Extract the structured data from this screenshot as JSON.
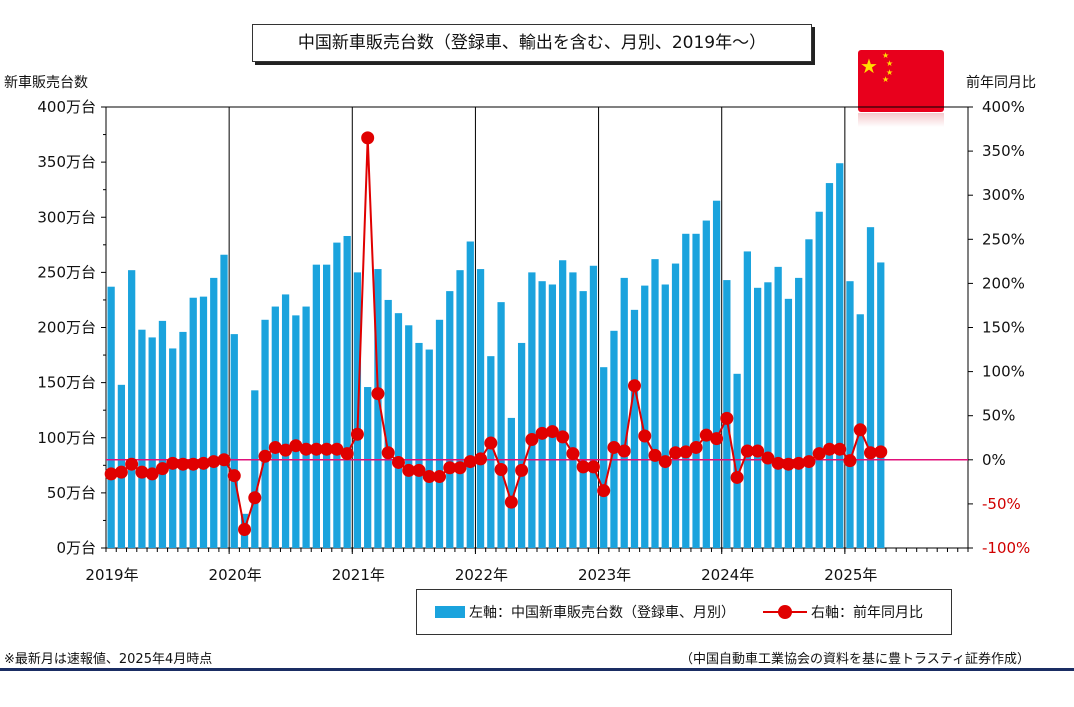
{
  "title": "中国新車販売台数（登録車、輸出を含む、月別、2019年～）",
  "left_axis_title": "新車販売台数",
  "right_axis_title": "前年同月比",
  "legend": {
    "bar": "左軸：中国新車販売台数（登録車、月別）",
    "line": "右軸：前年同月比"
  },
  "footnote_left": "※最新月は速報値、2025年4月時点",
  "footnote_right": "（中国自動車工業協会の資料を基に豊トラスティ証券作成）",
  "colors": {
    "bar": "#1aa3dd",
    "line": "#e00000",
    "zero_line": "#e0107a",
    "flag": "#e8001c",
    "star": "#ffde00"
  },
  "chart_data": {
    "type": "bar+line",
    "x_tick_labels": [
      "2019年",
      "2020年",
      "2021年",
      "2022年",
      "2023年",
      "2024年",
      "2025年"
    ],
    "y_left": {
      "ticks": [
        "0万台",
        "50万台",
        "100万台",
        "150万台",
        "200万台",
        "250万台",
        "300万台",
        "350万台",
        "400万台"
      ],
      "ylim": [
        0,
        400
      ],
      "unit": "万台"
    },
    "y_right": {
      "ticks": [
        "-100%",
        "-50%",
        "0%",
        "50%",
        "100%",
        "150%",
        "200%",
        "250%",
        "300%",
        "350%",
        "400%"
      ],
      "ylim": [
        -100,
        400
      ],
      "unit": "%"
    },
    "series": [
      {
        "name": "中国新車販売台数",
        "axis": "left",
        "type": "bar",
        "values": [
          237,
          148,
          252,
          198,
          191,
          206,
          181,
          196,
          227,
          228,
          245,
          266,
          194,
          31,
          143,
          207,
          219,
          230,
          211,
          219,
          257,
          257,
          277,
          283,
          250,
          146,
          253,
          225,
          213,
          202,
          186,
          180,
          207,
          233,
          252,
          278,
          253,
          174,
          223,
          118,
          186,
          250,
          242,
          239,
          261,
          250,
          233,
          256,
          164,
          197,
          245,
          216,
          238,
          262,
          239,
          258,
          285,
          285,
          297,
          315,
          243,
          158,
          269,
          236,
          241,
          255,
          226,
          245,
          280,
          305,
          331,
          349,
          242,
          212,
          291,
          259
        ]
      },
      {
        "name": "前年同月比",
        "axis": "right",
        "type": "line",
        "values": [
          -16,
          -14,
          -5,
          -14,
          -16,
          -10,
          -4,
          -5,
          -5,
          -4,
          -2,
          0,
          -18,
          -79,
          -43,
          4,
          14,
          11,
          16,
          12,
          12,
          12,
          12,
          7,
          29,
          365,
          75,
          8,
          -3,
          -12,
          -12,
          -19,
          -19,
          -9,
          -9,
          -2,
          1,
          19,
          -11,
          -48,
          -12,
          23,
          30,
          32,
          26,
          7,
          -8,
          -8,
          -35,
          14,
          10,
          84,
          27,
          5,
          -2,
          8,
          9,
          14,
          28,
          24,
          47,
          -20,
          10,
          10,
          2,
          -4,
          -5,
          -4,
          -2,
          7,
          12,
          12,
          -1,
          34,
          8,
          9
        ]
      }
    ],
    "start": "2019年1月",
    "end": "2025年4月",
    "grid": false,
    "legend_position": "bottom"
  }
}
